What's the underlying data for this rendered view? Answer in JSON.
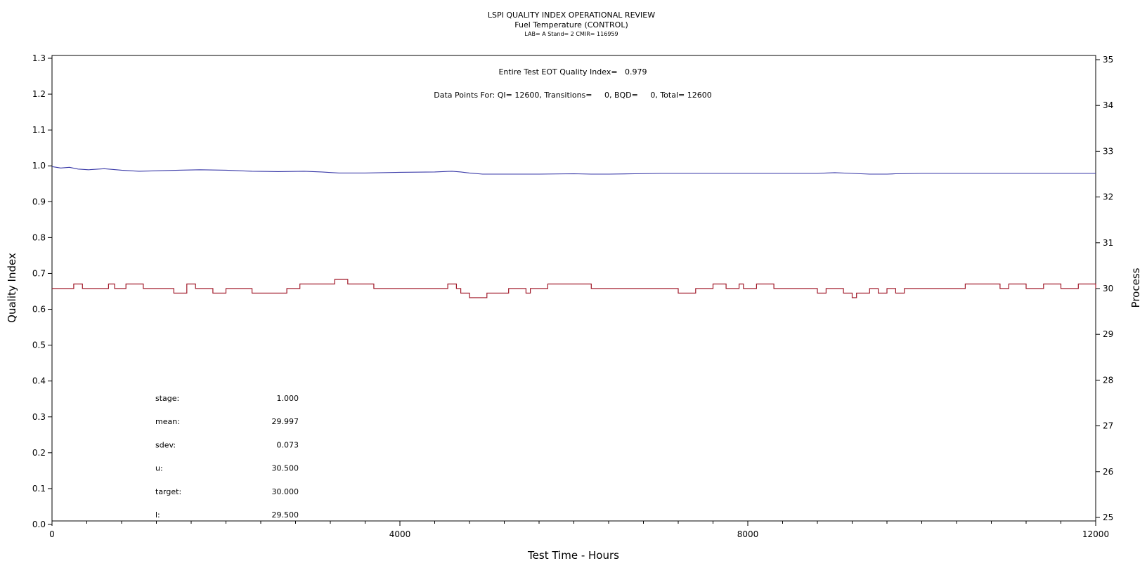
{
  "chart_data": {
    "type": "line",
    "title": "LSPI QUALITY INDEX OPERATIONAL REVIEW",
    "subtitle": "Fuel Temperature (CONTROL)",
    "subtitle2": "LAB= A Stand= 2 CMIR= 116959",
    "xlabel": "Test Time - Hours",
    "ylabel": "Quality Index",
    "y2label": "Process",
    "xlim": [
      0,
      12000
    ],
    "ylim": [
      0,
      1.3
    ],
    "y2lim": [
      25,
      35
    ],
    "x_ticks": [
      "0",
      "4000",
      "8000",
      "12000"
    ],
    "x_tick_values": [
      0,
      4000,
      8000,
      12000
    ],
    "x_minor_step": 400,
    "y_ticks": [
      "0.0",
      "0.1",
      "0.2",
      "0.3",
      "0.4",
      "0.5",
      "0.6",
      "0.7",
      "0.8",
      "0.9",
      "1.0",
      "1.1",
      "1.2",
      "1.3"
    ],
    "y_tick_values": [
      0,
      0.1,
      0.2,
      0.3,
      0.4,
      0.5,
      0.6,
      0.7,
      0.8,
      0.9,
      1.0,
      1.1,
      1.2,
      1.3
    ],
    "y2_ticks": [
      "25",
      "26",
      "27",
      "28",
      "29",
      "30",
      "31",
      "32",
      "33",
      "34",
      "35"
    ],
    "y2_tick_values": [
      25,
      26,
      27,
      28,
      29,
      30,
      31,
      32,
      33,
      34,
      35
    ],
    "annotations": {
      "qi_line": "Entire Test EOT Quality Index=   0.979",
      "points_line": "Data Points For: QI= 12600, Transitions=     0, BQD=     0, Total= 12600"
    },
    "stats": [
      {
        "label": "stage:",
        "value": "1.000"
      },
      {
        "label": "mean:",
        "value": "29.997"
      },
      {
        "label": "sdev:",
        "value": "0.073"
      },
      {
        "label": "u:",
        "value": "30.500"
      },
      {
        "label": "target:",
        "value": "30.000"
      },
      {
        "label": "l:",
        "value": "29.500"
      }
    ],
    "series": [
      {
        "axis": "left",
        "color": "#3a3aa8",
        "x": [
          0,
          100,
          200,
          300,
          420,
          600,
          800,
          1000,
          1300,
          1700,
          2000,
          2300,
          2600,
          2900,
          3100,
          3300,
          3600,
          4000,
          4400,
          4600,
          4700,
          4800,
          4950,
          5200,
          5600,
          6000,
          6200,
          6400,
          6700,
          7000,
          7600,
          8200,
          8800,
          8900,
          9000,
          9200,
          9400,
          9600,
          9700,
          10000,
          10500,
          11000,
          11500,
          12000
        ],
        "values": [
          0.998,
          0.994,
          0.996,
          0.991,
          0.989,
          0.992,
          0.988,
          0.985,
          0.987,
          0.989,
          0.988,
          0.985,
          0.984,
          0.985,
          0.983,
          0.98,
          0.98,
          0.982,
          0.983,
          0.985,
          0.983,
          0.98,
          0.977,
          0.977,
          0.977,
          0.978,
          0.977,
          0.977,
          0.978,
          0.979,
          0.979,
          0.979,
          0.979,
          0.98,
          0.981,
          0.979,
          0.977,
          0.977,
          0.978,
          0.979,
          0.979,
          0.979,
          0.979,
          0.979
        ]
      },
      {
        "axis": "right",
        "color": "#a01828",
        "x": [
          0,
          250,
          350,
          450,
          650,
          720,
          850,
          1050,
          1250,
          1400,
          1550,
          1650,
          1850,
          2000,
          2300,
          2650,
          2700,
          2750,
          2850,
          3100,
          3250,
          3400,
          3700,
          4000,
          4400,
          4550,
          4650,
          4700,
          4800,
          5000,
          5150,
          5250,
          5450,
          5500,
          5600,
          5700,
          5800,
          6000,
          6200,
          6500,
          6700,
          7000,
          7200,
          7400,
          7600,
          7750,
          7900,
          7950,
          8100,
          8300,
          8600,
          8800,
          8900,
          9100,
          9200,
          9250,
          9400,
          9500,
          9600,
          9700,
          9800,
          10000,
          10300,
          10500,
          10700,
          10900,
          11000,
          11200,
          11400,
          11600,
          11800,
          12000
        ],
        "values": [
          30.0,
          30.1,
          30.0,
          30.0,
          30.1,
          30.0,
          30.1,
          30.0,
          30.0,
          29.9,
          30.1,
          30.0,
          29.9,
          30.0,
          29.9,
          29.9,
          30.0,
          30.0,
          30.1,
          30.1,
          30.2,
          30.1,
          30.0,
          30.0,
          30.0,
          30.1,
          30.0,
          29.9,
          29.8,
          29.9,
          29.9,
          30.0,
          29.9,
          30.0,
          30.0,
          30.1,
          30.1,
          30.1,
          30.0,
          30.0,
          30.0,
          30.0,
          29.9,
          30.0,
          30.1,
          30.0,
          30.1,
          30.0,
          30.1,
          30.0,
          30.0,
          29.9,
          30.0,
          29.9,
          29.8,
          29.9,
          30.0,
          29.9,
          30.0,
          29.9,
          30.0,
          30.0,
          30.0,
          30.1,
          30.1,
          30.0,
          30.1,
          30.0,
          30.1,
          30.0,
          30.1,
          30.0
        ]
      }
    ],
    "grid": false,
    "legend": "none"
  }
}
